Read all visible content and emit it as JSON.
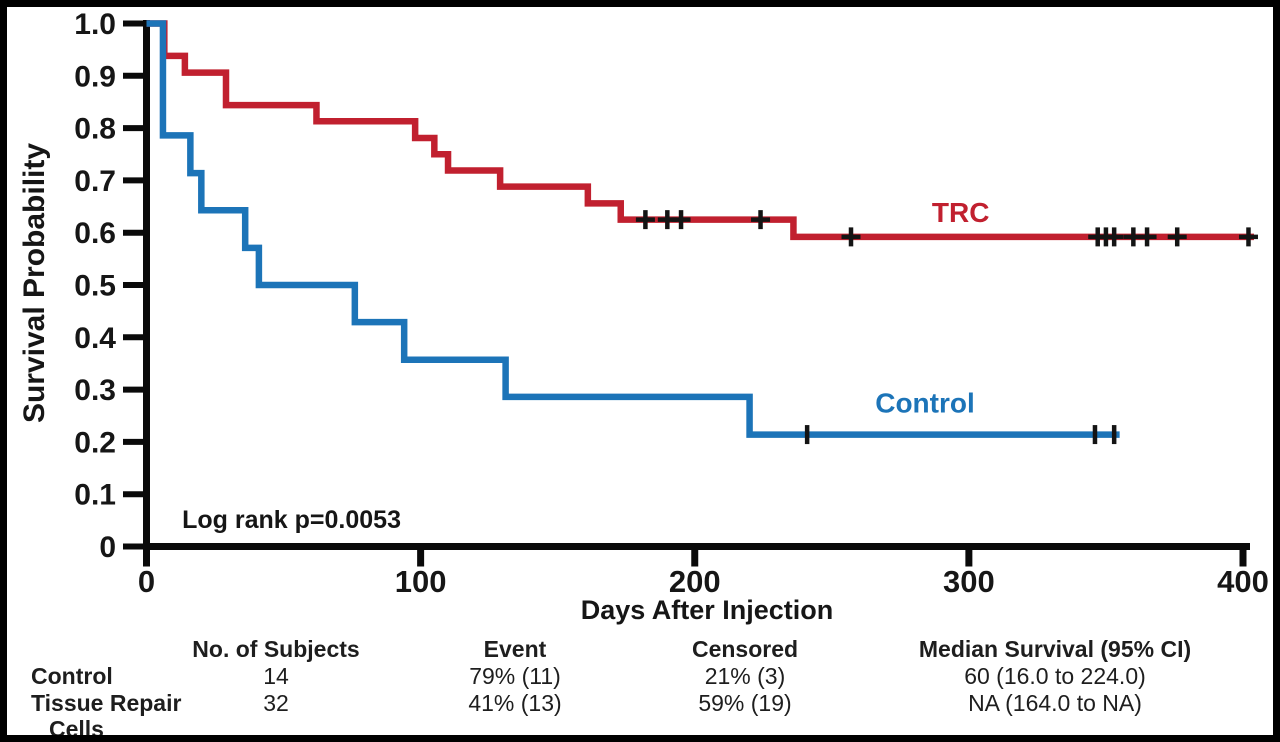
{
  "figure": {
    "background": "#ffffff",
    "border_color": "#000000",
    "text_color": "#1e1e1e"
  },
  "chart_data": {
    "type": "line",
    "subtype": "kaplan-meier-step",
    "title": "",
    "xlabel": "Days After Injection",
    "ylabel": "Survival Probability",
    "xlim": [
      0,
      400
    ],
    "ylim": [
      0,
      1.0
    ],
    "grid": false,
    "legend_position": "inline-labels",
    "xticks": [
      {
        "v": 0,
        "label": "0"
      },
      {
        "v": 100,
        "label": "100"
      },
      {
        "v": 200,
        "label": "200"
      },
      {
        "v": 300,
        "label": "300"
      },
      {
        "v": 400,
        "label": "400"
      }
    ],
    "yticks": [
      {
        "v": 1.0,
        "label": "1.0"
      },
      {
        "v": 0.9,
        "label": "0.9"
      },
      {
        "v": 0.8,
        "label": "0.8"
      },
      {
        "v": 0.7,
        "label": "0.7"
      },
      {
        "v": 0.6,
        "label": "0.6"
      },
      {
        "v": 0.5,
        "label": "0.5"
      },
      {
        "v": 0.4,
        "label": "0.4"
      },
      {
        "v": 0.3,
        "label": "0.3"
      },
      {
        "v": 0.2,
        "label": "0.2"
      },
      {
        "v": 0.1,
        "label": "0.1"
      },
      {
        "v": 0,
        "label": "0"
      }
    ],
    "annotation": {
      "text": "Log rank p=0.0053",
      "day": 13,
      "value": 0.035
    },
    "series": [
      {
        "name": "TRC",
        "color": "#c1202f",
        "censor_style": "plus",
        "steps": [
          [
            0,
            1.0
          ],
          [
            6.5,
            0.938
          ],
          [
            14,
            0.906
          ],
          [
            29,
            0.844
          ],
          [
            62,
            0.813
          ],
          [
            98,
            0.781
          ],
          [
            105,
            0.75
          ],
          [
            110,
            0.719
          ],
          [
            129,
            0.688
          ],
          [
            161,
            0.656
          ],
          [
            173,
            0.625
          ],
          [
            236,
            0.592
          ]
        ],
        "end_day": 404,
        "censored_days": [
          182,
          190,
          195,
          224,
          257,
          347,
          350,
          353,
          360,
          365,
          376,
          402
        ],
        "label": {
          "text": "TRC",
          "day": 297,
          "value": 0.62
        }
      },
      {
        "name": "Control",
        "color": "#1c74b8",
        "censor_style": "tick",
        "steps": [
          [
            0,
            1.0
          ],
          [
            6,
            0.786
          ],
          [
            16,
            0.714
          ],
          [
            20,
            0.643
          ],
          [
            36,
            0.571
          ],
          [
            41,
            0.5
          ],
          [
            76,
            0.429
          ],
          [
            94,
            0.357
          ],
          [
            131,
            0.286
          ],
          [
            220,
            0.214
          ]
        ],
        "end_day": 355,
        "censored_days": [
          241,
          346,
          353
        ],
        "label": {
          "text": "Control",
          "day": 284,
          "value": 0.256
        }
      }
    ]
  },
  "table": {
    "headers": {
      "subjects": "No. of Subjects",
      "event": "Event",
      "censored": "Censored",
      "median": "Median Survival (95% CI)"
    },
    "rows": [
      {
        "label": "Control",
        "subjects": "14",
        "event": "79% (11)",
        "censored": "21% (3)",
        "median": "60 (16.0 to 224.0)"
      },
      {
        "label": "Tissue Repair Cells",
        "subjects": "32",
        "event": "41% (13)",
        "censored": "59% (19)",
        "median": "NA (164.0 to NA)"
      }
    ]
  }
}
